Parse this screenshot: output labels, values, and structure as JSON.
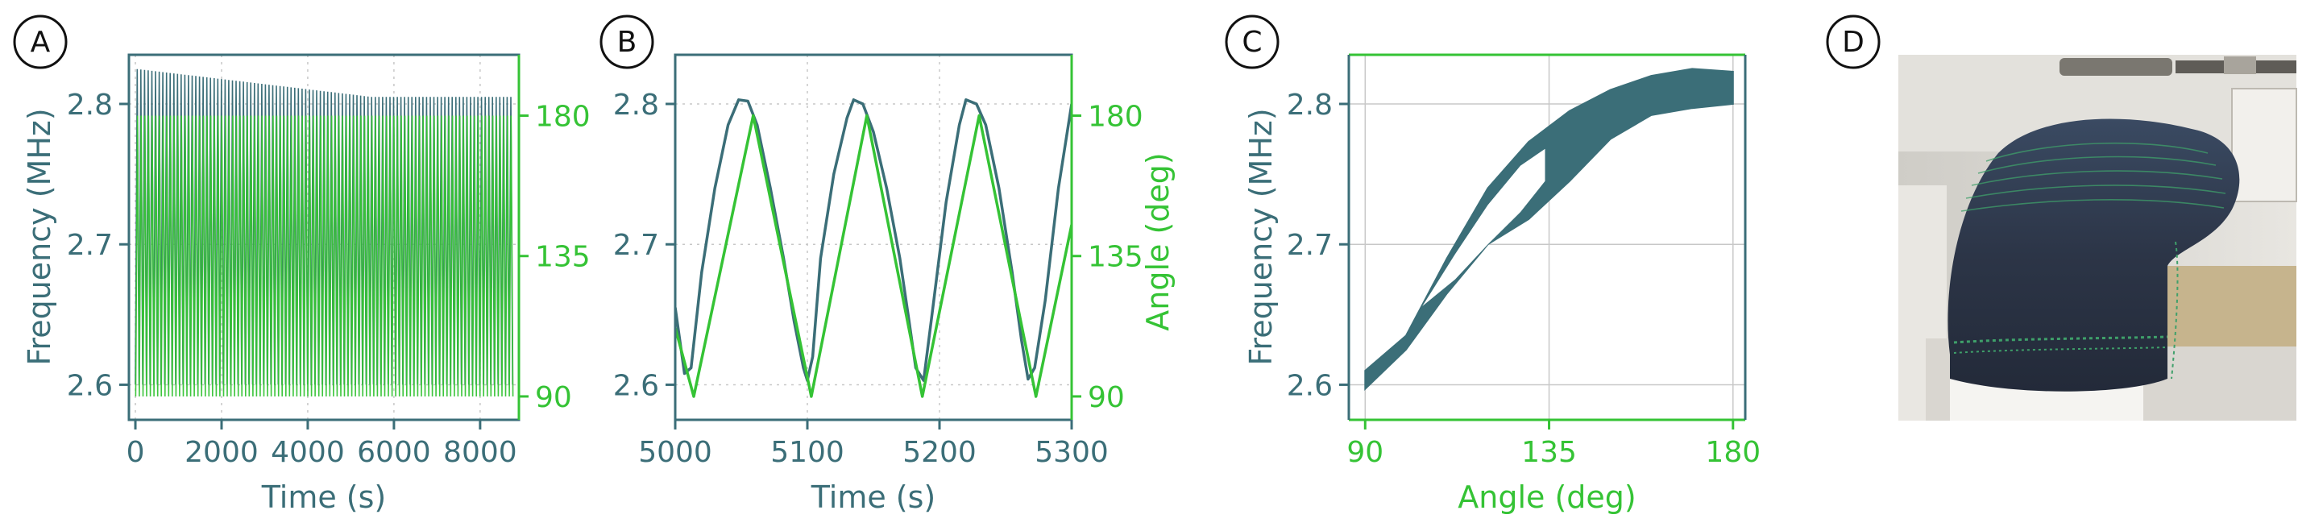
{
  "colors": {
    "teal": "#3b6e78",
    "green": "#35c335",
    "grid": "#c8c8c8",
    "frame_teal": "#3b6e78"
  },
  "panels": [
    {
      "letter": "A"
    },
    {
      "letter": "B"
    },
    {
      "letter": "C"
    },
    {
      "letter": "D"
    }
  ],
  "chart_data": [
    {
      "panel": "A",
      "type": "line",
      "xlabel": "Time (s)",
      "ylabel_left": "Frequency (MHz)",
      "ylabel_right": "",
      "xlim": [
        -150,
        8900
      ],
      "ylim_left": [
        2.575,
        2.835
      ],
      "ylim_right": [
        82.5,
        199.5
      ],
      "x_ticks": [
        0,
        2000,
        4000,
        6000,
        8000
      ],
      "y_ticks_left": [
        2.6,
        2.7,
        2.8
      ],
      "y_ticks_right": [
        90,
        135,
        180
      ],
      "grid": true,
      "series": [
        {
          "axis": "left",
          "color": "teal",
          "period_s": 85,
          "t_start": 0,
          "t_end": 8780,
          "min": 2.6,
          "max_start": 2.825,
          "max_end": 2.805
        },
        {
          "axis": "right",
          "color": "green",
          "period_s": 85,
          "t_start": 0,
          "t_end": 8780,
          "min": 90,
          "max": 180
        }
      ]
    },
    {
      "panel": "B",
      "type": "line",
      "xlabel": "Time (s)",
      "ylabel_left": "",
      "ylabel_right": "Angle (deg)",
      "xlim": [
        5000,
        5300
      ],
      "ylim_left": [
        2.575,
        2.835
      ],
      "ylim_right": [
        82.5,
        199.5
      ],
      "x_ticks": [
        5000,
        5100,
        5200,
        5300
      ],
      "y_ticks_left": [
        2.6,
        2.7,
        2.8
      ],
      "y_ticks_right": [
        90,
        135,
        180
      ],
      "grid": true,
      "series": [
        {
          "axis": "left",
          "color": "teal",
          "x": [
            5000,
            5007,
            5012,
            5020,
            5030,
            5040,
            5048,
            5055,
            5062,
            5072,
            5082,
            5090,
            5097,
            5100,
            5104,
            5110,
            5120,
            5130,
            5135,
            5142,
            5150,
            5160,
            5170,
            5177,
            5182,
            5188,
            5195,
            5205,
            5215,
            5220,
            5228,
            5235,
            5245,
            5255,
            5262,
            5267,
            5272,
            5280,
            5290,
            5300
          ],
          "y": [
            2.655,
            2.608,
            2.612,
            2.68,
            2.74,
            2.785,
            2.803,
            2.802,
            2.785,
            2.74,
            2.69,
            2.645,
            2.612,
            2.603,
            2.62,
            2.69,
            2.75,
            2.79,
            2.803,
            2.8,
            2.78,
            2.74,
            2.69,
            2.645,
            2.612,
            2.603,
            2.655,
            2.73,
            2.785,
            2.803,
            2.8,
            2.785,
            2.74,
            2.68,
            2.632,
            2.604,
            2.612,
            2.66,
            2.74,
            2.8
          ]
        },
        {
          "axis": "right",
          "color": "green",
          "x": [
            5000,
            5014,
            5059,
            5103,
            5145,
            5187,
            5230,
            5273,
            5300
          ],
          "y": [
            112,
            90,
            180,
            90,
            180,
            90,
            180,
            90,
            145
          ]
        }
      ]
    },
    {
      "panel": "C",
      "type": "line",
      "xlabel": "Angle (deg)",
      "ylabel_left": "Frequency (MHz)",
      "xlim": [
        86,
        183
      ],
      "ylim_left": [
        2.575,
        2.835
      ],
      "x_ticks": [
        90,
        135,
        180
      ],
      "y_ticks_left": [
        2.6,
        2.7,
        2.8
      ],
      "grid": true,
      "series": [
        {
          "name": "",
          "color": "teal",
          "band_upper": {
            "x": [
              90,
              100,
              110,
              120,
              130,
              140,
              150,
              160,
              170,
              180
            ],
            "y": [
              2.61,
              2.635,
              2.69,
              2.74,
              2.773,
              2.795,
              2.81,
              2.82,
              2.825,
              2.823
            ]
          },
          "band_lower": {
            "x": [
              90,
              100,
              110,
              120,
              130,
              140,
              150,
              160,
              170,
              180
            ],
            "y": [
              2.597,
              2.625,
              2.665,
              2.7,
              2.718,
              2.745,
              2.775,
              2.792,
              2.797,
              2.8
            ]
          },
          "inner_hole_upper": {
            "x": [
              104,
              112,
              120,
              128,
              134
            ],
            "y": [
              2.656,
              2.693,
              2.728,
              2.756,
              2.768
            ]
          },
          "inner_hole_lower": {
            "x": [
              104,
              112,
              120,
              128,
              134
            ],
            "y": [
              2.656,
              2.675,
              2.7,
              2.723,
              2.745
            ]
          }
        }
      ]
    }
  ]
}
